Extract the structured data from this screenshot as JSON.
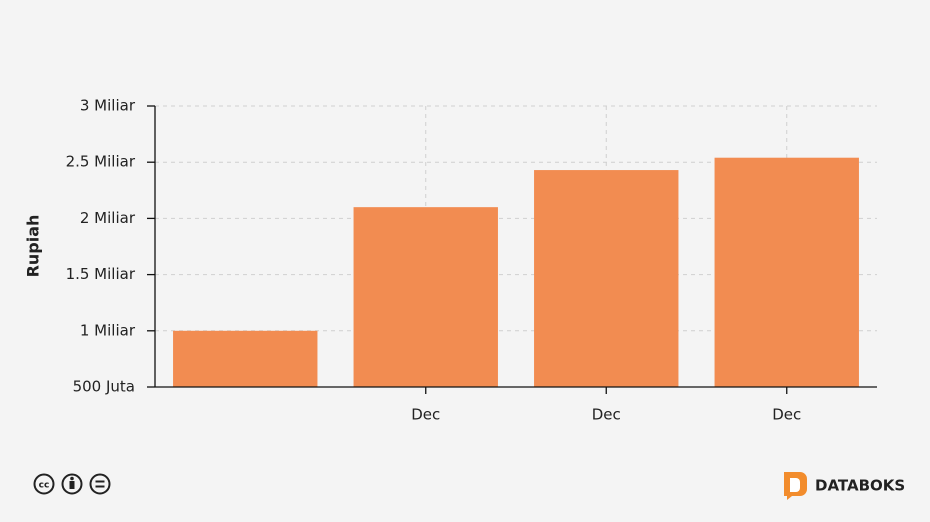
{
  "chart_data": {
    "type": "bar",
    "y_axis_title": "Rupiah",
    "categories": [
      null,
      "Dec",
      "Dec",
      "Dec"
    ],
    "values": [
      1000000000,
      2100000000,
      2430000000,
      2540000000
    ],
    "color": "#f28c51",
    "ylim": [
      500000000,
      3000000000
    ],
    "yticks": [
      {
        "value": 500000000,
        "label": "500 Juta"
      },
      {
        "value": 1000000000,
        "label": "1 Miliar"
      },
      {
        "value": 1500000000,
        "label": "1.5 Miliar"
      },
      {
        "value": 2000000000,
        "label": "2 Miliar"
      },
      {
        "value": 2500000000,
        "label": "2.5 Miliar"
      },
      {
        "value": 3000000000,
        "label": "3 Miliar"
      }
    ],
    "grid": true
  },
  "footer": {
    "brand": "DATABOKS"
  }
}
